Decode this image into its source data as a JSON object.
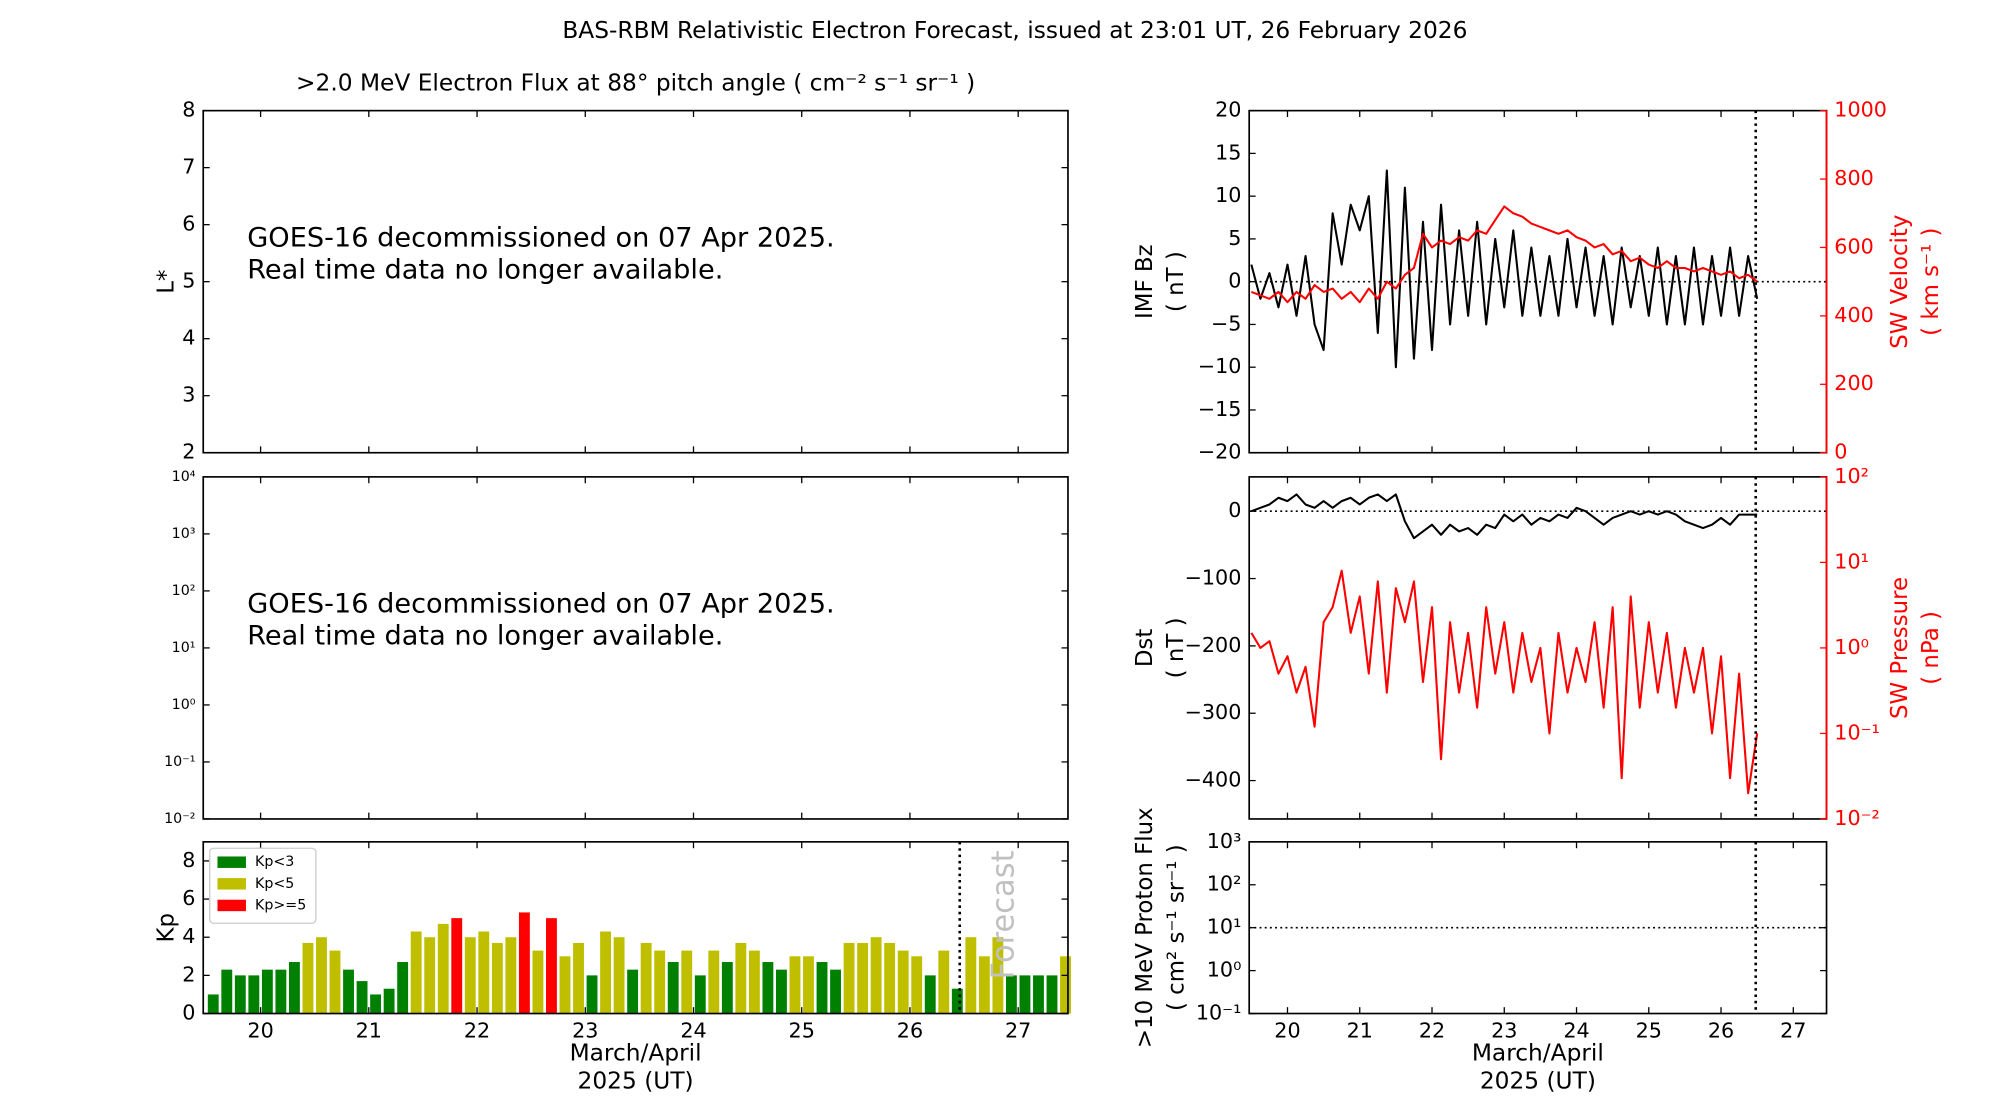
{
  "title": "BAS-RBM Relativistic Electron Forecast, issued at 23:01 UT, 26 February 2026",
  "chart_data": [
    {
      "type": "line",
      "subtitle": ">2.0 MeV Electron Flux at 88° pitch angle ( cm⁻² s⁻¹ sr⁻¹ )",
      "ylabel": "L*",
      "annotation": [
        "GOES-16 decommissioned on 07 Apr 2025.",
        "Real time data no longer available."
      ],
      "xlim": [
        19.47,
        27.46
      ],
      "xticks": [
        20,
        21,
        22,
        23,
        24,
        25,
        26,
        27
      ],
      "ylim": [
        2,
        8
      ],
      "yticks": [
        2,
        3,
        4,
        5,
        6,
        7,
        8
      ],
      "series": []
    },
    {
      "type": "line",
      "annotation": [
        "GOES-16 decommissioned on 07 Apr 2025.",
        "Real time data no longer available."
      ],
      "xlim": [
        19.47,
        27.46
      ],
      "xticks": [
        20,
        21,
        22,
        23,
        24,
        25,
        26,
        27
      ],
      "ylim": [
        0.01,
        10000
      ],
      "ylog": true,
      "yticks": [
        {
          "value": 0.01,
          "label": "10⁻²"
        },
        {
          "value": 0.1,
          "label": "10⁻¹"
        },
        {
          "value": 1,
          "label": "10⁰"
        },
        {
          "value": 10,
          "label": "10¹"
        },
        {
          "value": 100,
          "label": "10²"
        },
        {
          "value": 1000,
          "label": "10³"
        },
        {
          "value": 10000,
          "label": "10⁴"
        }
      ],
      "series": []
    },
    {
      "type": "bar",
      "ylabel": "Kp",
      "xlabel": [
        "March/April",
        "2025 (UT)"
      ],
      "legend": "upper left",
      "forecast_x": 26.46,
      "forecast_label": "Forecast",
      "xlim": [
        19.47,
        27.46
      ],
      "xticks": [
        20,
        21,
        22,
        23,
        24,
        25,
        26,
        27
      ],
      "ylim": [
        0,
        9
      ],
      "yticks": [
        0,
        2,
        4,
        6,
        8
      ],
      "series": [
        {
          "name": "Kp<3",
          "color": "#008000",
          "x": [
            19.5625,
            19.6875,
            19.8125,
            19.9375,
            20.0625,
            20.1875,
            20.3125,
            20.8125,
            20.9375,
            21.0625,
            21.1875,
            21.3125,
            23.0625,
            23.4375,
            23.8125,
            24.0625,
            24.3125,
            24.6875,
            24.8125,
            25.1875,
            25.3125,
            26.1875,
            26.4375,
            26.9375,
            27.0625,
            27.1875,
            27.3125
          ],
          "values": [
            1.0,
            2.3,
            2.0,
            2.0,
            2.3,
            2.3,
            2.7,
            2.3,
            1.7,
            1.0,
            1.3,
            2.7,
            2.0,
            2.3,
            2.7,
            2.0,
            2.7,
            2.7,
            2.3,
            2.7,
            2.3,
            2.0,
            1.3,
            2.0,
            2.0,
            2.0,
            2.0
          ]
        },
        {
          "name": "Kp<5",
          "color": "#bfbf00",
          "x": [
            20.4375,
            20.5625,
            20.6875,
            21.4375,
            21.5625,
            21.6875,
            21.9375,
            22.0625,
            22.1875,
            22.3125,
            22.5625,
            22.8125,
            22.9375,
            23.1875,
            23.3125,
            23.5625,
            23.6875,
            23.9375,
            24.1875,
            24.4375,
            24.5625,
            24.9375,
            25.0625,
            25.4375,
            25.5625,
            25.6875,
            25.8125,
            25.9375,
            26.0625,
            26.3125,
            26.5625,
            26.6875,
            26.8125,
            27.4375
          ],
          "values": [
            3.7,
            4.0,
            3.3,
            4.3,
            4.0,
            4.7,
            4.0,
            4.3,
            3.7,
            4.0,
            3.3,
            3.0,
            3.7,
            4.3,
            4.0,
            3.7,
            3.3,
            3.3,
            3.3,
            3.7,
            3.3,
            3.0,
            3.0,
            3.7,
            3.7,
            4.0,
            3.7,
            3.3,
            3.0,
            3.3,
            4.0,
            3.0,
            4.0,
            3.0
          ]
        },
        {
          "name": "Kp>=5",
          "color": "#ff0000",
          "x": [
            21.8125,
            22.4375,
            22.6875
          ],
          "values": [
            5.0,
            5.3,
            5.0
          ]
        }
      ]
    },
    {
      "type": "line",
      "ylabel": [
        "IMF Bz",
        "( nT )"
      ],
      "y2label": [
        "SW Velocity",
        "( km s⁻¹ )"
      ],
      "forecast_x": 26.48,
      "reference_y": 0,
      "xlim": [
        19.47,
        27.46
      ],
      "xticks": [
        20,
        21,
        22,
        23,
        24,
        25,
        26,
        27
      ],
      "ylim": [
        -20,
        20
      ],
      "yticks": [
        {
          "value": -20,
          "label": "−20"
        },
        {
          "value": -15,
          "label": "−15"
        },
        {
          "value": -10,
          "label": "−10"
        },
        {
          "value": -5,
          "label": "−5"
        },
        0,
        5,
        10,
        15,
        20
      ],
      "y2lim": [
        0,
        1000
      ],
      "y2ticks": [
        0,
        200,
        400,
        600,
        800,
        1000
      ],
      "x": [
        19.5,
        19.625,
        19.75,
        19.875,
        20,
        20.125,
        20.25,
        20.375,
        20.5,
        20.625,
        20.75,
        20.875,
        21,
        21.125,
        21.25,
        21.375,
        21.5,
        21.625,
        21.75,
        21.875,
        22,
        22.125,
        22.25,
        22.375,
        22.5,
        22.625,
        22.75,
        22.875,
        23,
        23.125,
        23.25,
        23.375,
        23.5,
        23.625,
        23.75,
        23.875,
        24,
        24.125,
        24.25,
        24.375,
        24.5,
        24.625,
        24.75,
        24.875,
        25,
        25.125,
        25.25,
        25.375,
        25.5,
        25.625,
        25.75,
        25.875,
        26,
        26.125,
        26.25,
        26.375,
        26.5
      ],
      "series": [
        {
          "color": "#000000",
          "values": [
            2,
            -2,
            1,
            -3,
            2,
            -4,
            3,
            -5,
            -8,
            8,
            2,
            9,
            6,
            10,
            -6,
            13,
            -10,
            11,
            -9,
            7,
            -8,
            9,
            -5,
            6,
            -4,
            7,
            -5,
            5,
            -3,
            6,
            -4,
            4,
            -4,
            3,
            -4,
            5,
            -3,
            4,
            -4,
            3,
            -5,
            4,
            -3,
            3,
            -4,
            4,
            -5,
            3,
            -5,
            4,
            -5,
            3,
            -4,
            4,
            -4,
            3,
            -2
          ]
        },
        {
          "color": "#ff0000",
          "axis": "y2",
          "values": [
            470,
            460,
            450,
            470,
            440,
            470,
            450,
            490,
            470,
            480,
            450,
            470,
            440,
            480,
            450,
            500,
            480,
            520,
            540,
            640,
            600,
            620,
            610,
            630,
            620,
            650,
            640,
            680,
            720,
            700,
            690,
            670,
            660,
            650,
            640,
            650,
            630,
            620,
            600,
            610,
            580,
            590,
            560,
            570,
            550,
            540,
            560,
            540,
            540,
            530,
            540,
            530,
            520,
            530,
            510,
            520,
            500
          ]
        }
      ]
    },
    {
      "type": "line",
      "ylabel": [
        "Dst",
        "( nT )"
      ],
      "y2label": [
        "SW Pressure",
        "( nPa )"
      ],
      "forecast_x": 26.48,
      "reference_y": 0,
      "xlim": [
        19.47,
        27.46
      ],
      "xticks": [
        20,
        21,
        22,
        23,
        24,
        25,
        26,
        27
      ],
      "ylim": [
        -457,
        51
      ],
      "yticks": [
        {
          "value": -400,
          "label": "−400"
        },
        {
          "value": -300,
          "label": "−300"
        },
        {
          "value": -200,
          "label": "−200"
        },
        {
          "value": -100,
          "label": "−100"
        },
        0
      ],
      "y2lim": [
        0.01,
        100
      ],
      "y2log": true,
      "y2ticks": [
        {
          "value": 0.01,
          "label": "10⁻²"
        },
        {
          "value": 0.1,
          "label": "10⁻¹"
        },
        {
          "value": 1,
          "label": "10⁰"
        },
        {
          "value": 10,
          "label": "10¹"
        },
        {
          "value": 100,
          "label": "10²"
        }
      ],
      "x": [
        19.5,
        19.625,
        19.75,
        19.875,
        20,
        20.125,
        20.25,
        20.375,
        20.5,
        20.625,
        20.75,
        20.875,
        21,
        21.125,
        21.25,
        21.375,
        21.5,
        21.625,
        21.75,
        21.875,
        22,
        22.125,
        22.25,
        22.375,
        22.5,
        22.625,
        22.75,
        22.875,
        23,
        23.125,
        23.25,
        23.375,
        23.5,
        23.625,
        23.75,
        23.875,
        24,
        24.125,
        24.25,
        24.375,
        24.5,
        24.625,
        24.75,
        24.875,
        25,
        25.125,
        25.25,
        25.375,
        25.5,
        25.625,
        25.75,
        25.875,
        26,
        26.125,
        26.25,
        26.375,
        26.5
      ],
      "series": [
        {
          "color": "#ff0000",
          "axis": "y2",
          "values": [
            1.5,
            1.0,
            1.2,
            0.5,
            0.8,
            0.3,
            0.6,
            0.12,
            2,
            3,
            8,
            1.5,
            4,
            0.5,
            6,
            0.3,
            5,
            2,
            6,
            0.4,
            3,
            0.05,
            2,
            0.3,
            1.5,
            0.2,
            3,
            0.5,
            2,
            0.3,
            1.5,
            0.4,
            1,
            0.1,
            1.5,
            0.3,
            1,
            0.4,
            2,
            0.2,
            3,
            0.03,
            4,
            0.2,
            2,
            0.3,
            1.5,
            0.2,
            1,
            0.3,
            1,
            0.1,
            0.8,
            0.03,
            0.5,
            0.02,
            0.1
          ]
        },
        {
          "color": "#000000",
          "values": [
            0,
            5,
            10,
            20,
            15,
            25,
            10,
            5,
            15,
            5,
            15,
            20,
            10,
            20,
            25,
            15,
            25,
            -15,
            -40,
            -30,
            -20,
            -35,
            -20,
            -30,
            -25,
            -35,
            -20,
            -25,
            -5,
            -15,
            -5,
            -20,
            -10,
            -15,
            -5,
            -10,
            5,
            0,
            -10,
            -20,
            -10,
            -5,
            0,
            -5,
            0,
            -5,
            0,
            -5,
            -15,
            -20,
            -25,
            -20,
            -10,
            -20,
            -5,
            -5,
            -5
          ]
        }
      ]
    },
    {
      "type": "line",
      "ylabel": [
        ">10 MeV Proton Flux",
        "( cm² s⁻¹ sr⁻¹ )"
      ],
      "xlabel": [
        "March/April",
        "2025 (UT)"
      ],
      "forecast_x": 26.48,
      "reference_y": 10,
      "xlim": [
        19.47,
        27.46
      ],
      "xticks": [
        20,
        21,
        22,
        23,
        24,
        25,
        26,
        27
      ],
      "ylim": [
        0.1,
        1000
      ],
      "ylog": true,
      "yticks": [
        {
          "value": 0.1,
          "label": "10⁻¹"
        },
        {
          "value": 1,
          "label": "10⁰"
        },
        {
          "value": 10,
          "label": "10¹"
        },
        {
          "value": 100,
          "label": "10²"
        },
        {
          "value": 1000,
          "label": "10³"
        }
      ],
      "series": []
    }
  ]
}
